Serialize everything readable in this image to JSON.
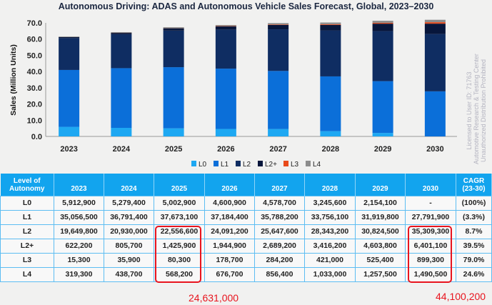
{
  "chart_data": {
    "type": "bar",
    "stacked": true,
    "title": "Autonomous Driving: ADAS and Autonomous Vehicle Sales Forecast, Global, 2023–2030",
    "ylabel": "Sales (Million Units)",
    "xlabel": "",
    "ylim": [
      0,
      70
    ],
    "yticks": [
      "0.0",
      "10.0",
      "20.0",
      "30.0",
      "40.0",
      "50.0",
      "60.0",
      "70.0"
    ],
    "categories": [
      "2023",
      "2024",
      "2025",
      "2026",
      "2027",
      "2028",
      "2029",
      "2030"
    ],
    "legend_position": "bottom",
    "series": [
      {
        "name": "L0",
        "color": "#1ea8f2",
        "values": [
          5.9129,
          5.2794,
          5.0029,
          4.6009,
          4.5787,
          3.2456,
          2.1541,
          0
        ]
      },
      {
        "name": "L1",
        "color": "#0b6fd9",
        "values": [
          35.0565,
          36.7914,
          37.6731,
          37.1844,
          35.7882,
          33.7561,
          31.9198,
          27.7919
        ]
      },
      {
        "name": "L2",
        "color": "#0f2d62",
        "values": [
          19.6498,
          20.93,
          22.5566,
          24.0912,
          25.6476,
          28.3432,
          30.8245,
          35.3093
        ]
      },
      {
        "name": "L2+",
        "color": "#07163b",
        "values": [
          0.6222,
          0.8057,
          1.4259,
          1.9449,
          2.6892,
          3.4162,
          4.6038,
          6.4011
        ]
      },
      {
        "name": "L3",
        "color": "#e84a1b",
        "values": [
          0.0153,
          0.0359,
          0.0803,
          0.1787,
          0.2842,
          0.421,
          0.5254,
          0.8993
        ]
      },
      {
        "name": "L4",
        "color": "#8c8c8c",
        "values": [
          0.3193,
          0.4387,
          0.5682,
          0.6767,
          0.8564,
          1.033,
          1.2575,
          1.4905
        ]
      }
    ]
  },
  "watermark": [
    "Licensed to User ID: 71763",
    "Automotive Research & Testing Center",
    "Unauthorized Distribution Prohibited"
  ],
  "table": {
    "header": [
      "Level of Autonomy",
      "2023",
      "2024",
      "2025",
      "2026",
      "2027",
      "2028",
      "2029",
      "2030",
      "CAGR (23-30)"
    ],
    "rows": [
      [
        "L0",
        "5,912,900",
        "5,279,400",
        "5,002,900",
        "4,600,900",
        "4,578,700",
        "3,245,600",
        "2,154,100",
        "-",
        "(100%)"
      ],
      [
        "L1",
        "35,056,500",
        "36,791,400",
        "37,673,100",
        "37,184,400",
        "35,788,200",
        "33,756,100",
        "31,919,800",
        "27,791,900",
        "(3.3%)"
      ],
      [
        "L2",
        "19,649,800",
        "20,930,000",
        "22,556,600",
        "24,091,200",
        "25,647,600",
        "28,343,200",
        "30,824,500",
        "35,309,300",
        "8.7%"
      ],
      [
        "L2+",
        "622,200",
        "805,700",
        "1,425,900",
        "1,944,900",
        "2,689,200",
        "3,416,200",
        "4,603,800",
        "6,401,100",
        "39.5%"
      ],
      [
        "L3",
        "15,300",
        "35,900",
        "80,300",
        "178,700",
        "284,200",
        "421,000",
        "525,400",
        "899,300",
        "79.0%"
      ],
      [
        "L4",
        "319,300",
        "438,700",
        "568,200",
        "676,700",
        "856,400",
        "1,033,000",
        "1,257,500",
        "1,490,500",
        "24.6%"
      ]
    ]
  },
  "annotations": {
    "sum_2025": "24,631,000",
    "sum_2030": "44,100,200"
  }
}
